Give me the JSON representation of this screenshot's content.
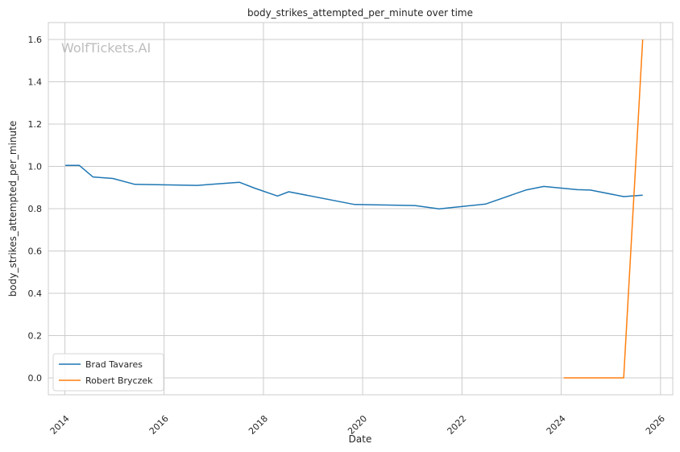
{
  "chart_data": {
    "type": "line",
    "title": "body_strikes_attempted_per_minute over time",
    "xlabel": "Date",
    "ylabel": "body_strikes_attempted_per_minute",
    "watermark": "WolfTickets.AI",
    "xlim": [
      "2013-09-01",
      "2026-04-01"
    ],
    "ylim": [
      -0.08,
      1.68
    ],
    "x_ticks": [
      "2014",
      "2016",
      "2018",
      "2020",
      "2022",
      "2024",
      "2026"
    ],
    "y_ticks": [
      "0.0",
      "0.2",
      "0.4",
      "0.6",
      "0.8",
      "1.0",
      "1.2",
      "1.4",
      "1.6"
    ],
    "grid": true,
    "legend_position": "lower-left",
    "colors": {
      "Brad Tavares": "#1f77b4",
      "Robert Bryczek": "#ff7f0e"
    },
    "series": [
      {
        "name": "Brad Tavares",
        "x": [
          "2014-01-04",
          "2014-04-16",
          "2014-07-26",
          "2014-12-20",
          "2015-05-30",
          "2016-09-01",
          "2017-07-08",
          "2017-10-28",
          "2018-04-14",
          "2018-07-06",
          "2019-11-02",
          "2021-01-20",
          "2021-07-17",
          "2022-06-25",
          "2023-04-15",
          "2023-08-26",
          "2024-04-27",
          "2024-08-03",
          "2025-04-05",
          "2025-08-23"
        ],
        "values": [
          1.005,
          1.005,
          0.95,
          0.943,
          0.915,
          0.91,
          0.925,
          0.897,
          0.86,
          0.88,
          0.82,
          0.815,
          0.799,
          0.822,
          0.888,
          0.905,
          0.89,
          0.888,
          0.857,
          0.864
        ]
      },
      {
        "name": "Robert Bryczek",
        "x": [
          "2024-01-20",
          "2025-04-05",
          "2025-08-23"
        ],
        "values": [
          0.0,
          0.0,
          1.6
        ]
      }
    ]
  }
}
